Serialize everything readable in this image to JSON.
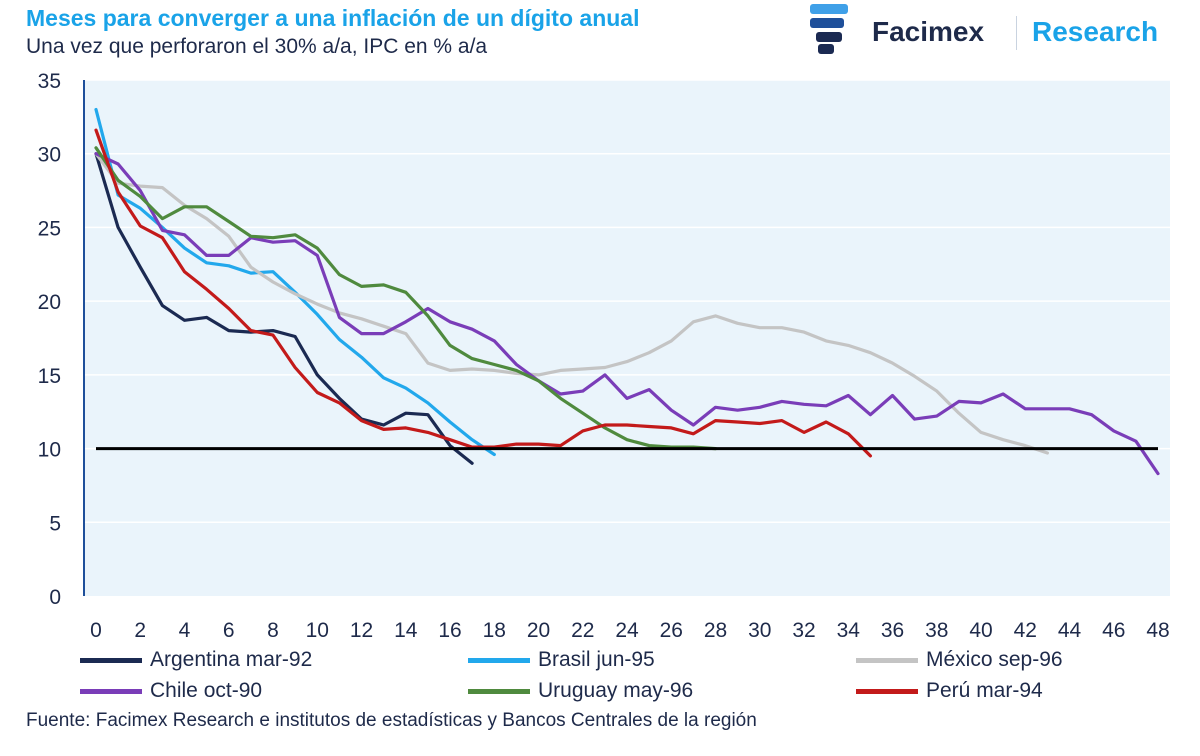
{
  "header": {
    "title": "Meses para converger a una inflación de un dígito anual",
    "subtitle": "Una vez que perforaron el 30% a/a, IPC en % a/a"
  },
  "brand": {
    "name": "Facimex",
    "research": "Research",
    "logo_icon": "facimex-logo-icon"
  },
  "source": "Fuente: Facimex Research e institutos de estadísticas y Bancos Centrales de la región",
  "colors": {
    "plot_background": "#eaf4fb",
    "title": "#1aa3e8",
    "text": "#1e2a4a",
    "threshold": "#000000"
  },
  "chart_data": {
    "type": "line",
    "xlim": [
      0,
      48
    ],
    "ylim": [
      0,
      35
    ],
    "x_ticks": [
      0,
      2,
      4,
      6,
      8,
      10,
      12,
      14,
      16,
      18,
      20,
      22,
      24,
      26,
      28,
      30,
      32,
      34,
      36,
      38,
      40,
      42,
      44,
      46,
      48
    ],
    "y_ticks": [
      0,
      5,
      10,
      15,
      20,
      25,
      30,
      35
    ],
    "grid": true,
    "legend_position": "bottom",
    "threshold": 10,
    "series": [
      {
        "name": "Argentina mar-92",
        "color": "#1b2a52",
        "values": [
          30.0,
          25.0,
          22.3,
          19.7,
          18.7,
          18.9,
          18.0,
          17.9,
          18.0,
          17.6,
          15.0,
          13.4,
          12.0,
          11.6,
          12.4,
          12.3,
          10.2,
          9.0
        ]
      },
      {
        "name": "Brasil jun-95",
        "color": "#22a8ec",
        "values": [
          33.0,
          27.2,
          26.3,
          25.0,
          23.6,
          22.6,
          22.4,
          21.9,
          22.0,
          20.6,
          19.1,
          17.4,
          16.2,
          14.8,
          14.1,
          13.1,
          11.8,
          10.6,
          9.6
        ]
      },
      {
        "name": "México sep-96",
        "color": "#c4c4c4",
        "values": [
          30.0,
          28.0,
          27.8,
          27.7,
          26.5,
          25.6,
          24.4,
          22.3,
          21.3,
          20.5,
          19.8,
          19.2,
          18.8,
          18.3,
          17.8,
          15.8,
          15.3,
          15.4,
          15.3,
          15.1,
          15.0,
          15.3,
          15.4,
          15.5,
          15.9,
          16.5,
          17.3,
          18.6,
          19.0,
          18.5,
          18.2,
          18.2,
          17.9,
          17.3,
          17.0,
          16.5,
          15.8,
          14.9,
          13.9,
          12.4,
          11.1,
          10.6,
          10.2,
          9.7
        ]
      },
      {
        "name": "Chile oct-90",
        "color": "#7a3db8",
        "values": [
          30.0,
          29.3,
          27.5,
          24.8,
          24.5,
          23.1,
          23.1,
          24.3,
          24.0,
          24.1,
          23.1,
          18.9,
          17.8,
          17.8,
          18.6,
          19.5,
          18.6,
          18.1,
          17.3,
          15.7,
          14.6,
          13.7,
          13.9,
          15.0,
          13.4,
          14.0,
          12.6,
          11.6,
          12.8,
          12.6,
          12.8,
          13.2,
          13.0,
          12.9,
          13.6,
          12.3,
          13.6,
          12.0,
          12.2,
          13.2,
          13.1,
          13.7,
          12.7,
          12.7,
          12.7,
          12.3,
          11.2,
          10.5,
          8.3
        ]
      },
      {
        "name": "Uruguay may-96",
        "color": "#4f8a3e",
        "values": [
          30.4,
          28.2,
          27.1,
          25.6,
          26.4,
          26.4,
          25.4,
          24.4,
          24.3,
          24.5,
          23.6,
          21.8,
          21.0,
          21.1,
          20.6,
          19.0,
          17.0,
          16.1,
          15.7,
          15.3,
          14.6,
          13.4,
          12.4,
          11.4,
          10.6,
          10.2,
          10.1,
          10.1,
          10.0
        ]
      },
      {
        "name": "Perú mar-94",
        "color": "#c31a1a",
        "values": [
          31.6,
          27.4,
          25.1,
          24.3,
          22.0,
          20.8,
          19.5,
          18.0,
          17.7,
          15.5,
          13.8,
          13.1,
          11.9,
          11.3,
          11.4,
          11.1,
          10.6,
          10.1,
          10.1,
          10.3,
          10.3,
          10.2,
          11.2,
          11.6,
          11.6,
          11.5,
          11.4,
          11.0,
          11.9,
          11.8,
          11.7,
          11.9,
          11.1,
          11.8,
          11.0,
          9.5
        ]
      }
    ]
  }
}
